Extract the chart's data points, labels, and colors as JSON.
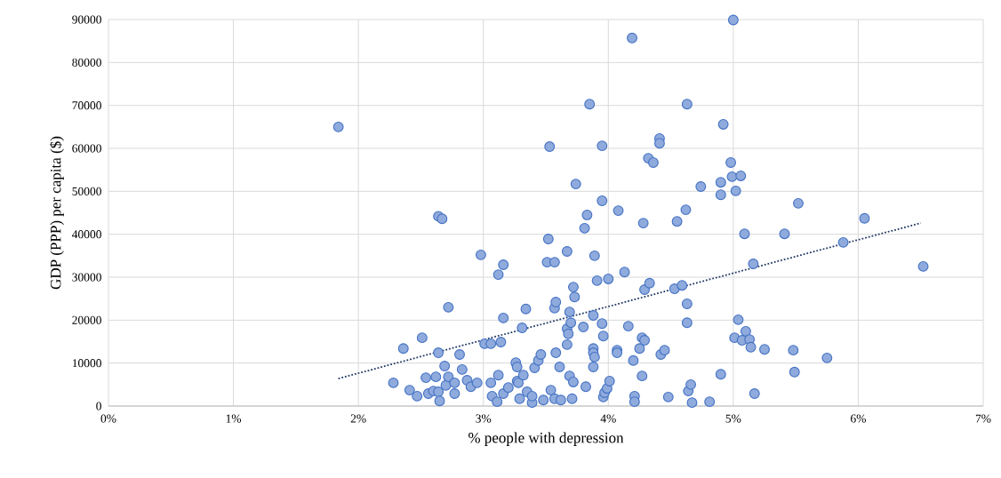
{
  "chart_data": {
    "type": "scatter",
    "xlabel": "% people with depression",
    "ylabel": "GDP (PPP) per capita ($)",
    "xlim": [
      0,
      7
    ],
    "ylim": [
      0,
      90000
    ],
    "xticks": [
      {
        "value": 0,
        "label": "0%"
      },
      {
        "value": 1,
        "label": "1%"
      },
      {
        "value": 2,
        "label": "2%"
      },
      {
        "value": 3,
        "label": "3%"
      },
      {
        "value": 4,
        "label": "4%"
      },
      {
        "value": 5,
        "label": "5%"
      },
      {
        "value": 6,
        "label": "6%"
      },
      {
        "value": 7,
        "label": "7%"
      }
    ],
    "yticks": [
      0,
      10000,
      20000,
      30000,
      40000,
      50000,
      60000,
      70000,
      80000,
      90000
    ],
    "grid": true,
    "series": [
      {
        "color": "#4472c4",
        "marker": "circle",
        "x": [
          1.84,
          2.28,
          2.36,
          2.41,
          2.47,
          2.51,
          2.54,
          2.56,
          2.6,
          2.62,
          2.64,
          2.64,
          2.64,
          2.65,
          2.67,
          2.69,
          2.7,
          2.72,
          2.72,
          2.77,
          2.77,
          2.81,
          2.83,
          2.87,
          2.9,
          2.95,
          2.98,
          3.01,
          3.06,
          3.06,
          3.07,
          3.11,
          3.12,
          3.12,
          3.14,
          3.16,
          3.16,
          3.16,
          3.2,
          3.26,
          3.27,
          3.27,
          3.28,
          3.29,
          3.31,
          3.32,
          3.34,
          3.35,
          3.39,
          3.39,
          3.41,
          3.44,
          3.46,
          3.48,
          3.51,
          3.52,
          3.53,
          3.54,
          3.57,
          3.57,
          3.57,
          3.58,
          3.58,
          3.61,
          3.62,
          3.67,
          3.67,
          3.68,
          3.67,
          3.69,
          3.69,
          3.7,
          3.71,
          3.72,
          3.73,
          3.72,
          3.74,
          3.8,
          3.81,
          3.82,
          3.83,
          3.85,
          3.88,
          3.88,
          3.88,
          3.89,
          3.88,
          3.89,
          3.91,
          3.95,
          3.95,
          3.95,
          3.96,
          3.96,
          3.97,
          3.99,
          4.0,
          4.01,
          4.07,
          4.07,
          4.08,
          4.13,
          4.16,
          4.19,
          4.2,
          4.21,
          4.21,
          4.25,
          4.27,
          4.27,
          4.28,
          4.29,
          4.29,
          4.32,
          4.33,
          4.36,
          4.41,
          4.41,
          4.42,
          4.45,
          4.48,
          4.53,
          4.55,
          4.59,
          4.62,
          4.63,
          4.63,
          4.63,
          4.64,
          4.66,
          4.67,
          4.74,
          4.81,
          4.9,
          4.9,
          4.9,
          4.92,
          4.98,
          4.99,
          5.0,
          5.01,
          5.02,
          5.04,
          5.06,
          5.07,
          5.09,
          5.1,
          5.13,
          5.14,
          5.16,
          5.17,
          5.25,
          5.41,
          5.48,
          5.49,
          5.52,
          5.75,
          5.88,
          6.05,
          6.52
        ],
        "values": [
          65000,
          5400,
          13400,
          3700,
          2300,
          15900,
          6600,
          2900,
          3500,
          6800,
          3300,
          12400,
          44200,
          1200,
          43600,
          9300,
          4800,
          23000,
          6800,
          5400,
          2900,
          12000,
          8500,
          6000,
          4500,
          5400,
          35200,
          14500,
          14500,
          5400,
          2300,
          1000,
          30600,
          7200,
          14900,
          32900,
          20500,
          2900,
          4300,
          10100,
          9100,
          5800,
          5400,
          1700,
          18200,
          7200,
          22600,
          3300,
          800,
          2300,
          8900,
          10600,
          12000,
          1400,
          33500,
          38900,
          60400,
          3700,
          1700,
          33500,
          22800,
          24200,
          12400,
          9100,
          1400,
          36000,
          18000,
          16800,
          14300,
          21900,
          7000,
          19400,
          1700,
          27700,
          25400,
          5600,
          51700,
          18400,
          41400,
          4500,
          44500,
          70300,
          21100,
          13400,
          12400,
          11400,
          9100,
          35000,
          29200,
          60600,
          47800,
          19200,
          16300,
          2100,
          3100,
          4100,
          29600,
          5800,
          13000,
          12400,
          45500,
          31200,
          18600,
          85700,
          10600,
          2300,
          1000,
          13400,
          15900,
          7000,
          42600,
          15300,
          27100,
          57700,
          28600,
          56700,
          62300,
          61200,
          12000,
          13000,
          2100,
          27300,
          43000,
          28100,
          45700,
          70300,
          23800,
          19400,
          3500,
          5000,
          800,
          51100,
          1000,
          52100,
          49200,
          7400,
          65600,
          56700,
          53400,
          89900,
          15900,
          50100,
          20100,
          53600,
          15300,
          40100,
          17400,
          15500,
          13700,
          33100,
          2900,
          13200,
          40100,
          13000,
          7900,
          47200,
          11200,
          38100,
          43700,
          32500
        ]
      },
      {
        "type": "line",
        "color": "#203864",
        "line_style": "dotted",
        "marker": "none",
        "x": [
          1.84,
          6.5
        ],
        "values": [
          6400,
          42600
        ]
      }
    ]
  }
}
